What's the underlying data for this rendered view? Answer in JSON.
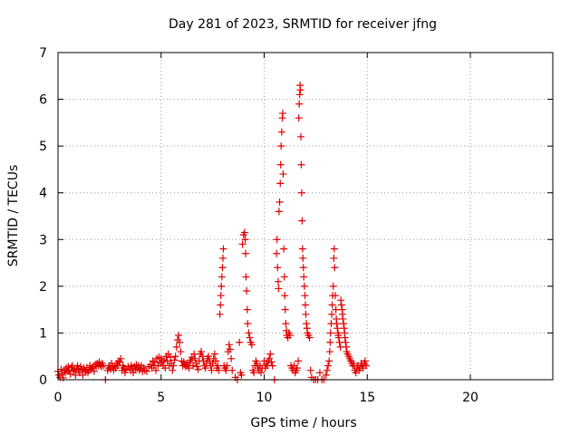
{
  "chart_data": {
    "type": "scatter",
    "title": "Day 281 of 2023, SRMTID for receiver jfng",
    "xlabel": "GPS time / hours",
    "ylabel": "SRMTID / TECUs",
    "xlim": [
      0,
      24
    ],
    "ylim": [
      0,
      7
    ],
    "xticks": [
      "0",
      "5",
      "10",
      "15",
      "20"
    ],
    "yticks": [
      "0",
      "1",
      "2",
      "3",
      "4",
      "5",
      "6",
      "7"
    ],
    "grid": true,
    "marker": "+",
    "series": [
      {
        "name": "SRMTID",
        "color": "#e00000",
        "points": [
          [
            0.0,
            0.18
          ],
          [
            0.05,
            0.1
          ],
          [
            0.1,
            0.05
          ],
          [
            0.15,
            0.22
          ],
          [
            0.2,
            0.12
          ],
          [
            0.25,
            0.04
          ],
          [
            0.3,
            0.2
          ],
          [
            0.35,
            0.15
          ],
          [
            0.4,
            0.25
          ],
          [
            0.45,
            0.18
          ],
          [
            0.5,
            0.28
          ],
          [
            0.55,
            0.2
          ],
          [
            0.6,
            0.12
          ],
          [
            0.65,
            0.26
          ],
          [
            0.7,
            0.3
          ],
          [
            0.75,
            0.18
          ],
          [
            0.8,
            0.22
          ],
          [
            0.85,
            0.1
          ],
          [
            0.9,
            0.24
          ],
          [
            0.95,
            0.3
          ],
          [
            1.0,
            0.2
          ],
          [
            1.05,
            0.15
          ],
          [
            1.1,
            0.28
          ],
          [
            1.15,
            0.22
          ],
          [
            1.2,
            0.1
          ],
          [
            1.25,
            0.25
          ],
          [
            1.3,
            0.2
          ],
          [
            1.35,
            0.18
          ],
          [
            1.4,
            0.26
          ],
          [
            1.45,
            0.15
          ],
          [
            1.5,
            0.2
          ],
          [
            1.55,
            0.3
          ],
          [
            1.6,
            0.22
          ],
          [
            1.65,
            0.25
          ],
          [
            1.7,
            0.28
          ],
          [
            1.75,
            0.18
          ],
          [
            1.8,
            0.32
          ],
          [
            1.85,
            0.28
          ],
          [
            1.9,
            0.35
          ],
          [
            1.95,
            0.3
          ],
          [
            2.0,
            0.38
          ],
          [
            2.05,
            0.32
          ],
          [
            2.1,
            0.28
          ],
          [
            2.15,
            0.35
          ],
          [
            2.2,
            0.3
          ],
          [
            2.3,
            0.0
          ],
          [
            2.4,
            0.2
          ],
          [
            2.45,
            0.25
          ],
          [
            2.5,
            0.3
          ],
          [
            2.55,
            0.22
          ],
          [
            2.6,
            0.35
          ],
          [
            2.65,
            0.28
          ],
          [
            2.7,
            0.2
          ],
          [
            2.75,
            0.3
          ],
          [
            2.8,
            0.25
          ],
          [
            2.85,
            0.35
          ],
          [
            2.9,
            0.3
          ],
          [
            2.95,
            0.4
          ],
          [
            3.0,
            0.38
          ],
          [
            3.05,
            0.45
          ],
          [
            3.1,
            0.2
          ],
          [
            3.15,
            0.3
          ],
          [
            3.2,
            0.25
          ],
          [
            3.25,
            0.15
          ],
          [
            3.3,
            0.22
          ],
          [
            3.4,
            0.28
          ],
          [
            3.5,
            0.2
          ],
          [
            3.55,
            0.3
          ],
          [
            3.6,
            0.25
          ],
          [
            3.65,
            0.15
          ],
          [
            3.7,
            0.28
          ],
          [
            3.75,
            0.22
          ],
          [
            3.8,
            0.32
          ],
          [
            3.85,
            0.25
          ],
          [
            3.9,
            0.3
          ],
          [
            3.95,
            0.2
          ],
          [
            4.0,
            0.25
          ],
          [
            4.05,
            0.3
          ],
          [
            4.1,
            0.18
          ],
          [
            4.15,
            0.25
          ],
          [
            4.2,
            0.2
          ],
          [
            4.3,
            0.18
          ],
          [
            4.4,
            0.28
          ],
          [
            4.5,
            0.32
          ],
          [
            4.55,
            0.25
          ],
          [
            4.6,
            0.4
          ],
          [
            4.65,
            0.3
          ],
          [
            4.7,
            0.38
          ],
          [
            4.75,
            0.2
          ],
          [
            4.8,
            0.45
          ],
          [
            4.85,
            0.3
          ],
          [
            4.9,
            0.48
          ],
          [
            4.95,
            0.35
          ],
          [
            5.0,
            0.45
          ],
          [
            5.05,
            0.38
          ],
          [
            5.1,
            0.3
          ],
          [
            5.15,
            0.42
          ],
          [
            5.2,
            0.25
          ],
          [
            5.25,
            0.5
          ],
          [
            5.3,
            0.4
          ],
          [
            5.35,
            0.55
          ],
          [
            5.4,
            0.3
          ],
          [
            5.45,
            0.48
          ],
          [
            5.5,
            0.35
          ],
          [
            5.55,
            0.2
          ],
          [
            5.6,
            0.3
          ],
          [
            5.65,
            0.42
          ],
          [
            5.7,
            0.5
          ],
          [
            5.75,
            0.7
          ],
          [
            5.8,
            0.85
          ],
          [
            5.85,
            0.95
          ],
          [
            5.9,
            0.8
          ],
          [
            5.95,
            0.6
          ],
          [
            6.0,
            0.4
          ],
          [
            6.05,
            0.3
          ],
          [
            6.1,
            0.38
          ],
          [
            6.15,
            0.32
          ],
          [
            6.2,
            0.28
          ],
          [
            6.25,
            0.35
          ],
          [
            6.3,
            0.3
          ],
          [
            6.35,
            0.25
          ],
          [
            6.4,
            0.38
          ],
          [
            6.45,
            0.42
          ],
          [
            6.5,
            0.48
          ],
          [
            6.55,
            0.3
          ],
          [
            6.6,
            0.55
          ],
          [
            6.65,
            0.45
          ],
          [
            6.7,
            0.35
          ],
          [
            6.75,
            0.28
          ],
          [
            6.8,
            0.22
          ],
          [
            6.85,
            0.4
          ],
          [
            6.9,
            0.55
          ],
          [
            6.95,
            0.6
          ],
          [
            7.0,
            0.5
          ],
          [
            7.05,
            0.4
          ],
          [
            7.1,
            0.3
          ],
          [
            7.15,
            0.25
          ],
          [
            7.2,
            0.35
          ],
          [
            7.25,
            0.45
          ],
          [
            7.3,
            0.5
          ],
          [
            7.35,
            0.4
          ],
          [
            7.4,
            0.3
          ],
          [
            7.45,
            0.2
          ],
          [
            7.5,
            0.35
          ],
          [
            7.55,
            0.45
          ],
          [
            7.6,
            0.55
          ],
          [
            7.65,
            0.4
          ],
          [
            7.7,
            0.25
          ],
          [
            7.75,
            0.3
          ],
          [
            7.8,
            0.2
          ],
          [
            7.85,
            1.4
          ],
          [
            7.88,
            1.6
          ],
          [
            7.9,
            1.8
          ],
          [
            7.92,
            2.0
          ],
          [
            7.95,
            2.2
          ],
          [
            7.98,
            2.4
          ],
          [
            8.0,
            2.6
          ],
          [
            8.02,
            2.8
          ],
          [
            8.05,
            0.3
          ],
          [
            8.1,
            0.25
          ],
          [
            8.15,
            0.2
          ],
          [
            8.2,
            0.3
          ],
          [
            8.25,
            0.6
          ],
          [
            8.3,
            0.75
          ],
          [
            8.35,
            0.65
          ],
          [
            8.4,
            0.45
          ],
          [
            8.45,
            0.2
          ],
          [
            8.6,
            0.05
          ],
          [
            8.7,
            0.0
          ],
          [
            8.8,
            0.8
          ],
          [
            8.85,
            0.15
          ],
          [
            8.9,
            0.1
          ],
          [
            8.95,
            2.9
          ],
          [
            9.0,
            3.1
          ],
          [
            9.05,
            3.15
          ],
          [
            9.08,
            3.0
          ],
          [
            9.1,
            2.7
          ],
          [
            9.12,
            2.2
          ],
          [
            9.15,
            1.9
          ],
          [
            9.18,
            1.5
          ],
          [
            9.2,
            1.2
          ],
          [
            9.25,
            1.0
          ],
          [
            9.3,
            0.9
          ],
          [
            9.35,
            0.8
          ],
          [
            9.4,
            0.75
          ],
          [
            9.45,
            0.2
          ],
          [
            9.5,
            0.15
          ],
          [
            9.55,
            0.3
          ],
          [
            9.6,
            0.4
          ],
          [
            9.65,
            0.35
          ],
          [
            9.7,
            0.25
          ],
          [
            9.75,
            0.2
          ],
          [
            9.8,
            0.3
          ],
          [
            9.85,
            0.15
          ],
          [
            9.9,
            0.25
          ],
          [
            10.0,
            0.4
          ],
          [
            10.05,
            0.25
          ],
          [
            10.1,
            0.35
          ],
          [
            10.15,
            0.3
          ],
          [
            10.2,
            0.4
          ],
          [
            10.25,
            0.45
          ],
          [
            10.3,
            0.55
          ],
          [
            10.35,
            0.38
          ],
          [
            10.4,
            0.3
          ],
          [
            10.5,
            0.0
          ],
          [
            10.6,
            2.7
          ],
          [
            10.62,
            3.0
          ],
          [
            10.65,
            2.4
          ],
          [
            10.68,
            2.1
          ],
          [
            10.7,
            1.95
          ],
          [
            10.72,
            3.6
          ],
          [
            10.75,
            3.8
          ],
          [
            10.78,
            4.2
          ],
          [
            10.8,
            4.6
          ],
          [
            10.82,
            5.0
          ],
          [
            10.85,
            5.3
          ],
          [
            10.88,
            5.6
          ],
          [
            10.9,
            5.7
          ],
          [
            10.92,
            4.4
          ],
          [
            10.95,
            2.8
          ],
          [
            10.98,
            2.2
          ],
          [
            11.0,
            1.8
          ],
          [
            11.02,
            1.5
          ],
          [
            11.05,
            1.2
          ],
          [
            11.08,
            1.05
          ],
          [
            11.1,
            0.95
          ],
          [
            11.15,
            0.9
          ],
          [
            11.2,
            1.0
          ],
          [
            11.25,
            0.95
          ],
          [
            11.3,
            0.3
          ],
          [
            11.35,
            0.25
          ],
          [
            11.4,
            0.2
          ],
          [
            11.45,
            0.3
          ],
          [
            11.5,
            0.15
          ],
          [
            11.55,
            0.2
          ],
          [
            11.6,
            0.25
          ],
          [
            11.65,
            0.4
          ],
          [
            11.68,
            5.6
          ],
          [
            11.7,
            5.9
          ],
          [
            11.72,
            6.1
          ],
          [
            11.74,
            6.3
          ],
          [
            11.76,
            6.2
          ],
          [
            11.78,
            5.2
          ],
          [
            11.8,
            4.6
          ],
          [
            11.82,
            4.0
          ],
          [
            11.84,
            3.4
          ],
          [
            11.86,
            2.8
          ],
          [
            11.88,
            2.6
          ],
          [
            11.9,
            2.4
          ],
          [
            11.92,
            2.2
          ],
          [
            11.95,
            2.0
          ],
          [
            11.98,
            1.8
          ],
          [
            12.0,
            1.6
          ],
          [
            12.02,
            1.4
          ],
          [
            12.05,
            1.2
          ],
          [
            12.08,
            1.1
          ],
          [
            12.1,
            1.0
          ],
          [
            12.15,
            0.95
          ],
          [
            12.2,
            0.9
          ],
          [
            12.25,
            0.2
          ],
          [
            12.3,
            0.05
          ],
          [
            12.4,
            0.0
          ],
          [
            12.5,
            0.0
          ],
          [
            12.6,
            0.0
          ],
          [
            12.7,
            0.15
          ],
          [
            12.8,
            0.0
          ],
          [
            12.9,
            0.0
          ],
          [
            13.0,
            0.1
          ],
          [
            13.05,
            0.2
          ],
          [
            13.1,
            0.3
          ],
          [
            13.15,
            0.4
          ],
          [
            13.18,
            0.6
          ],
          [
            13.2,
            0.8
          ],
          [
            13.22,
            1.0
          ],
          [
            13.25,
            1.2
          ],
          [
            13.28,
            1.4
          ],
          [
            13.3,
            1.6
          ],
          [
            13.32,
            1.8
          ],
          [
            13.35,
            2.0
          ],
          [
            13.38,
            2.6
          ],
          [
            13.4,
            2.8
          ],
          [
            13.42,
            2.4
          ],
          [
            13.45,
            1.8
          ],
          [
            13.48,
            1.5
          ],
          [
            13.5,
            1.3
          ],
          [
            13.52,
            1.2
          ],
          [
            13.55,
            1.1
          ],
          [
            13.58,
            1.0
          ],
          [
            13.6,
            0.95
          ],
          [
            13.62,
            0.9
          ],
          [
            13.65,
            0.8
          ],
          [
            13.7,
            0.7
          ],
          [
            13.72,
            1.7
          ],
          [
            13.75,
            1.6
          ],
          [
            13.78,
            1.5
          ],
          [
            13.8,
            1.4
          ],
          [
            13.82,
            1.3
          ],
          [
            13.85,
            1.2
          ],
          [
            13.88,
            1.1
          ],
          [
            13.9,
            1.0
          ],
          [
            13.92,
            0.9
          ],
          [
            13.95,
            0.8
          ],
          [
            13.98,
            0.7
          ],
          [
            14.0,
            0.6
          ],
          [
            14.05,
            0.55
          ],
          [
            14.1,
            0.5
          ],
          [
            14.15,
            0.45
          ],
          [
            14.2,
            0.4
          ],
          [
            14.25,
            0.35
          ],
          [
            14.3,
            0.3
          ],
          [
            14.35,
            0.35
          ],
          [
            14.4,
            0.2
          ],
          [
            14.45,
            0.15
          ],
          [
            14.5,
            0.25
          ],
          [
            14.55,
            0.3
          ],
          [
            14.6,
            0.2
          ],
          [
            14.65,
            0.25
          ],
          [
            14.7,
            0.35
          ],
          [
            14.75,
            0.3
          ],
          [
            14.8,
            0.25
          ],
          [
            14.85,
            0.35
          ],
          [
            14.9,
            0.4
          ],
          [
            14.95,
            0.3
          ]
        ]
      }
    ]
  }
}
